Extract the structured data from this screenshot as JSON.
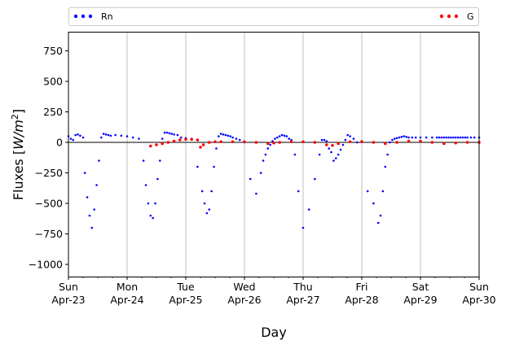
{
  "chart_data": {
    "type": "scatter",
    "title": "",
    "xlabel": "Day",
    "ylabel": "Fluxes [W/m²]",
    "ylabel_parts": {
      "main": "Fluxes [",
      "var": "W",
      "sep": "/",
      "var2": "m",
      "sup": "2",
      "close": "]"
    },
    "xlim": [
      0,
      7
    ],
    "ylim": [
      -1100,
      900
    ],
    "yticks": [
      750,
      500,
      250,
      0,
      -250,
      -500,
      -750,
      -1000
    ],
    "ytick_labels": [
      "750",
      "500",
      "250",
      "0",
      "−250",
      "−500",
      "−750",
      "−1000"
    ],
    "xticks": [
      0,
      1,
      2,
      3,
      4,
      5,
      6,
      7
    ],
    "xtick_labels": [
      {
        "day": "Sun",
        "date": "Apr-23"
      },
      {
        "day": "Mon",
        "date": "Apr-24"
      },
      {
        "day": "Tue",
        "date": "Apr-25"
      },
      {
        "day": "Wed",
        "date": "Apr-26"
      },
      {
        "day": "Thu",
        "date": "Apr-27"
      },
      {
        "day": "Fri",
        "date": "Apr-28"
      },
      {
        "day": "Sat",
        "date": "Apr-29"
      },
      {
        "day": "Sun",
        "date": "Apr-30"
      }
    ],
    "grid": "x-major",
    "zero_line": true,
    "legend_position": "top, outside",
    "series": [
      {
        "name": "Rn",
        "color": "#0000ff",
        "x": [
          0.0,
          0.04,
          0.08,
          0.12,
          0.16,
          0.2,
          0.25,
          0.28,
          0.32,
          0.36,
          0.4,
          0.44,
          0.48,
          0.52,
          0.56,
          0.6,
          0.64,
          0.68,
          0.72,
          0.8,
          0.9,
          1.0,
          1.1,
          1.2,
          1.28,
          1.32,
          1.36,
          1.4,
          1.44,
          1.48,
          1.52,
          1.56,
          1.6,
          1.64,
          1.68,
          1.72,
          1.76,
          1.8,
          1.86,
          1.92,
          2.0,
          2.1,
          2.2,
          2.28,
          2.32,
          2.36,
          2.4,
          2.44,
          2.48,
          2.52,
          2.56,
          2.6,
          2.64,
          2.68,
          2.72,
          2.76,
          2.8,
          2.86,
          2.92,
          3.0,
          3.1,
          3.2,
          3.28,
          3.32,
          3.36,
          3.4,
          3.44,
          3.48,
          3.52,
          3.56,
          3.6,
          3.64,
          3.68,
          3.72,
          3.76,
          3.8,
          3.86,
          3.92,
          4.0,
          4.1,
          4.2,
          4.28,
          4.32,
          4.36,
          4.4,
          4.44,
          4.48,
          4.52,
          4.56,
          4.6,
          4.64,
          4.68,
          4.72,
          4.76,
          4.8,
          4.86,
          4.92,
          5.0,
          5.1,
          5.2,
          5.28,
          5.32,
          5.36,
          5.4,
          5.44,
          5.48,
          5.52,
          5.56,
          5.6,
          5.64,
          5.68,
          5.72,
          5.76,
          5.8,
          5.86,
          5.92,
          6.0,
          6.1,
          6.2,
          6.28,
          6.32,
          6.36,
          6.4,
          6.44,
          6.48,
          6.52,
          6.56,
          6.6,
          6.64,
          6.68,
          6.72,
          6.76,
          6.8,
          6.86,
          6.92,
          7.0
        ],
        "y": [
          50,
          30,
          20,
          60,
          65,
          55,
          40,
          -250,
          -450,
          -600,
          -700,
          -550,
          -350,
          -150,
          40,
          70,
          65,
          60,
          55,
          60,
          55,
          50,
          40,
          30,
          -150,
          -350,
          -500,
          -600,
          -620,
          -500,
          -300,
          -150,
          30,
          80,
          80,
          75,
          70,
          65,
          60,
          40,
          35,
          30,
          -200,
          -400,
          -500,
          -580,
          -550,
          -400,
          -200,
          -50,
          50,
          70,
          65,
          60,
          55,
          50,
          40,
          30,
          20,
          0,
          -300,
          -420,
          -250,
          -150,
          -100,
          -50,
          -20,
          10,
          30,
          40,
          50,
          60,
          55,
          50,
          30,
          20,
          -100,
          -400,
          -700,
          -550,
          -300,
          -100,
          20,
          20,
          10,
          -50,
          -80,
          -150,
          -130,
          -100,
          -60,
          -20,
          20,
          60,
          50,
          30,
          0,
          10,
          -400,
          -500,
          -660,
          -600,
          -400,
          -200,
          -100,
          0,
          20,
          30,
          35,
          40,
          45,
          50,
          45,
          40,
          40,
          40,
          40,
          40,
          40,
          40,
          40,
          40,
          40,
          40,
          40,
          40,
          40,
          40,
          40,
          40,
          40,
          40,
          40,
          40,
          40,
          40
        ]
      },
      {
        "name": "G",
        "color": "#ff0000",
        "x": [
          1.4,
          1.5,
          1.6,
          1.7,
          1.8,
          1.9,
          2.0,
          2.1,
          2.2,
          2.25,
          2.3,
          2.4,
          2.5,
          2.6,
          2.8,
          3.0,
          3.2,
          3.4,
          3.5,
          3.6,
          3.8,
          4.0,
          4.2,
          4.4,
          4.5,
          4.6,
          4.8,
          5.0,
          5.2,
          5.4,
          5.6,
          5.8,
          6.0,
          6.2,
          6.4,
          6.6,
          6.8,
          7.0
        ],
        "y": [
          -30,
          -20,
          -10,
          0,
          10,
          20,
          25,
          25,
          20,
          -40,
          -20,
          0,
          5,
          5,
          5,
          5,
          0,
          -10,
          -5,
          0,
          5,
          5,
          0,
          -20,
          -25,
          -10,
          5,
          5,
          0,
          -10,
          0,
          10,
          10,
          0,
          -10,
          -5,
          0,
          0
        ]
      }
    ]
  }
}
